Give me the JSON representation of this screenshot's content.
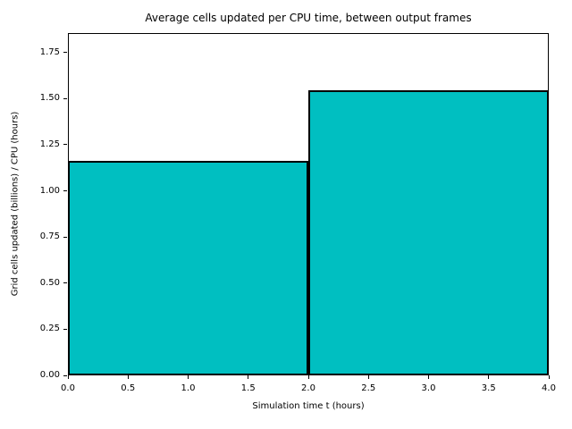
{
  "chart_data": {
    "type": "bar",
    "title": "Average cells updated per CPU time, between output frames",
    "xlabel": "Simulation time t (hours)",
    "ylabel": "Grid cells updated (billions) / CPU (hours)",
    "bars": [
      {
        "x_start": 0.0,
        "x_end": 2.0,
        "value": 1.16
      },
      {
        "x_start": 2.0,
        "x_end": 4.0,
        "value": 1.545
      }
    ],
    "xlim": [
      0.0,
      4.0
    ],
    "ylim": [
      0.0,
      1.855
    ],
    "x_ticks": [
      0.0,
      0.5,
      1.0,
      1.5,
      2.0,
      2.5,
      3.0,
      3.5,
      4.0
    ],
    "x_tick_labels": [
      "0.0",
      "0.5",
      "1.0",
      "1.5",
      "2.0",
      "2.5",
      "3.0",
      "3.5",
      "4.0"
    ],
    "y_ticks": [
      0.0,
      0.25,
      0.5,
      0.75,
      1.0,
      1.25,
      1.5,
      1.75
    ],
    "y_tick_labels": [
      "0.00",
      "0.25",
      "0.50",
      "0.75",
      "1.00",
      "1.25",
      "1.50",
      "1.75"
    ],
    "grid": false,
    "legend": null,
    "colors": {
      "bar_fill": "#00BFC1",
      "bar_edge": "#000000",
      "axis": "#000000",
      "background": "#FFFFFF",
      "text": "#000000"
    }
  }
}
